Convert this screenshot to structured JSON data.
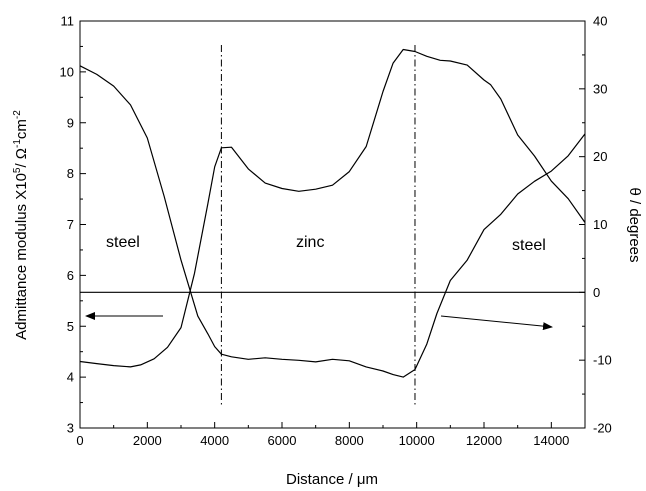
{
  "chart_data": {
    "type": "line",
    "xlabel": "Distance / μm",
    "ylabel_left": {
      "base": "Admittance modulus X10",
      "exp1": "5",
      "mid1": "/ Ω",
      "exp2": "-1",
      "mid2": "cm",
      "exp3": "-2"
    },
    "ylabel_right": "θ / degrees",
    "xlim": [
      0,
      15000
    ],
    "ylim_left": [
      3,
      11
    ],
    "ylim_right": [
      -20,
      40
    ],
    "x_ticks": [
      "0",
      "2000",
      "4000",
      "6000",
      "8000",
      "10000",
      "12000",
      "14000"
    ],
    "y_ticks_left": [
      "3",
      "4",
      "5",
      "6",
      "7",
      "8",
      "9",
      "10",
      "11"
    ],
    "y_ticks_right": [
      "-20",
      "-10",
      "0",
      "10",
      "20",
      "30",
      "40"
    ],
    "vertical_lines_x": [
      4200,
      9950
    ],
    "zero_line_right": 0,
    "annotations": [
      "steel",
      "zinc",
      "steel"
    ],
    "series": [
      {
        "axis": "left",
        "x": [
          0,
          500,
          1000,
          1500,
          2000,
          2500,
          3000,
          3500,
          3800,
          4000,
          4200,
          4500,
          5000,
          5500,
          6000,
          6500,
          7000,
          7500,
          8000,
          8500,
          9000,
          9300,
          9600,
          9950,
          10300,
          10600,
          11000,
          11500,
          12000,
          12500,
          13000,
          13500,
          14000,
          14500,
          15000
        ],
        "y": [
          10.12,
          9.95,
          9.72,
          9.35,
          8.7,
          7.55,
          6.3,
          5.2,
          4.85,
          4.6,
          4.45,
          4.4,
          4.35,
          4.38,
          4.35,
          4.33,
          4.3,
          4.35,
          4.32,
          4.2,
          4.12,
          4.05,
          4.0,
          4.15,
          4.65,
          5.25,
          5.9,
          6.3,
          6.9,
          7.2,
          7.6,
          7.85,
          8.05,
          8.35,
          8.78
        ]
      },
      {
        "axis": "right",
        "x": [
          0,
          500,
          1000,
          1500,
          1800,
          2200,
          2600,
          3000,
          3400,
          3800,
          4000,
          4200,
          4500,
          5000,
          5500,
          6000,
          6500,
          7000,
          7500,
          8000,
          8500,
          9000,
          9300,
          9600,
          9950,
          10300,
          10700,
          11000,
          11500,
          12000,
          12200,
          12500,
          13000,
          13500,
          14000,
          14500,
          15000
        ],
        "y": [
          -10.2,
          -10.5,
          -10.8,
          -11,
          -10.7,
          -9.8,
          -8.1,
          -5.2,
          2.8,
          13.1,
          18.5,
          21.3,
          21.4,
          18.2,
          16.1,
          15.3,
          14.9,
          15.2,
          15.8,
          17.8,
          21.5,
          29.6,
          33.8,
          35.8,
          35.5,
          34.8,
          34.2,
          34.1,
          33.5,
          31.3,
          30.6,
          28.5,
          23.2,
          20.1,
          16.4,
          13.8,
          10.3
        ]
      }
    ]
  }
}
